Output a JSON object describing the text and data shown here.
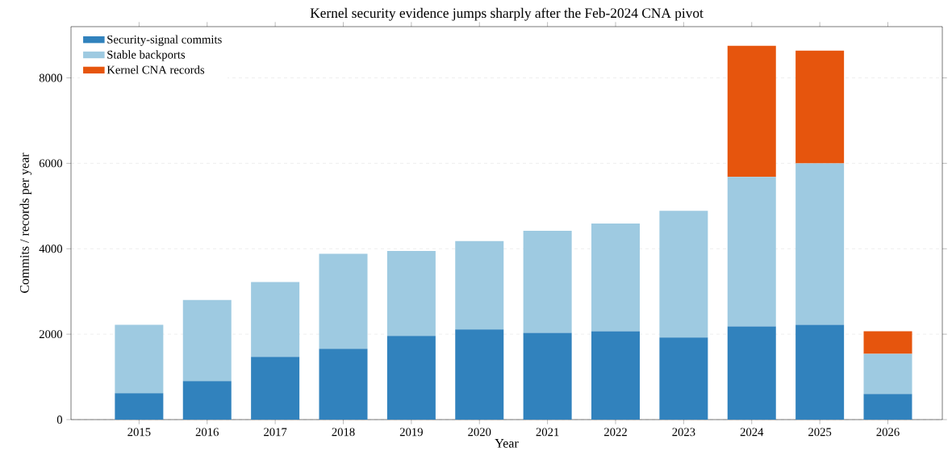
{
  "chart_data": {
    "type": "bar",
    "title": "Kernel security evidence jumps sharply after the Feb-2024 CNA pivot",
    "xlabel": "Year",
    "ylabel": "Commits / records per year",
    "categories": [
      "2015",
      "2016",
      "2017",
      "2018",
      "2019",
      "2020",
      "2021",
      "2022",
      "2023",
      "2024",
      "2025",
      "2026"
    ],
    "stacked": true,
    "series": [
      {
        "name": "Security-signal commits",
        "color": "#3182bd",
        "values": [
          620,
          900,
          1470,
          1660,
          1960,
          2110,
          2030,
          2070,
          1920,
          2180,
          2220,
          600
        ]
      },
      {
        "name": "Stable backports",
        "color": "#9ecae1",
        "values": [
          1600,
          1900,
          1750,
          2220,
          1990,
          2070,
          2390,
          2520,
          2970,
          3500,
          3780,
          940
        ]
      },
      {
        "name": "Kernel CNA records",
        "color": "#e6550d",
        "values": [
          null,
          null,
          null,
          null,
          null,
          null,
          null,
          null,
          null,
          3070,
          2640,
          530
        ]
      }
    ],
    "ylim": [
      0,
      9200
    ],
    "yticks": [
      0,
      2000,
      4000,
      6000,
      8000
    ],
    "grid": "y",
    "legend": "top left"
  }
}
